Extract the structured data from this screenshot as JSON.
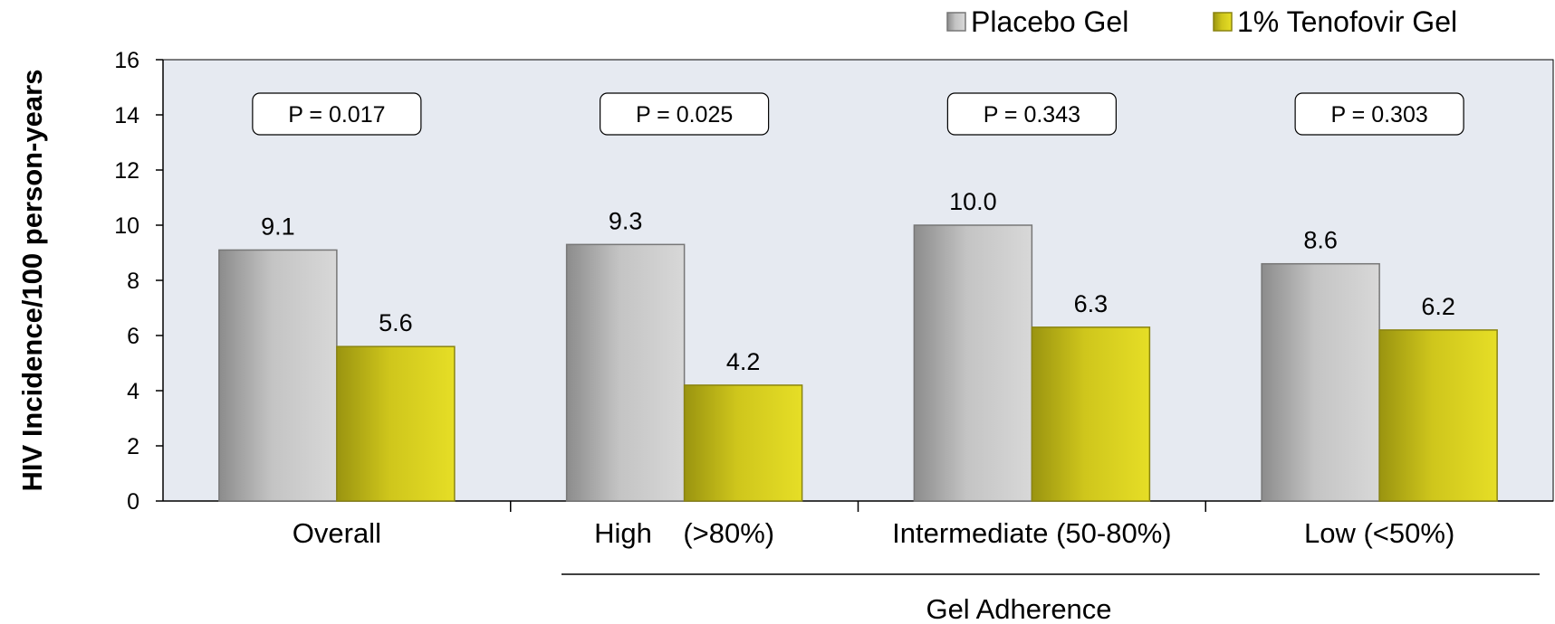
{
  "chart_data": {
    "type": "bar",
    "title": "",
    "ylabel": "HIV Incidence/100 person-years",
    "xlabel": "Gel Adherence",
    "ylim": [
      0,
      16
    ],
    "yticks": [
      "0",
      "2",
      "4",
      "6",
      "8",
      "10",
      "12",
      "14",
      "16"
    ],
    "categories": [
      "Overall",
      "High    (>80%)",
      "Intermediate (50-80%)",
      "Low (<50%)"
    ],
    "series": [
      {
        "name": "Placebo Gel",
        "values": [
          9.1,
          9.3,
          10.0,
          8.6
        ],
        "labels": [
          "9.1",
          "9.3",
          "10.0",
          "8.6"
        ],
        "color": "#b0b0b0"
      },
      {
        "name": "1% Tenofovir Gel",
        "values": [
          5.6,
          4.2,
          6.3,
          6.2
        ],
        "labels": [
          "5.6",
          "4.2",
          "6.3",
          "6.2"
        ],
        "color": "#c8c21e"
      }
    ],
    "annotations": [
      "P = 0.017",
      "P = 0.025",
      "P = 0.343",
      "P = 0.303"
    ],
    "legend_position": "top-right",
    "plot_background": "#e6eaf1",
    "grid": false
  }
}
